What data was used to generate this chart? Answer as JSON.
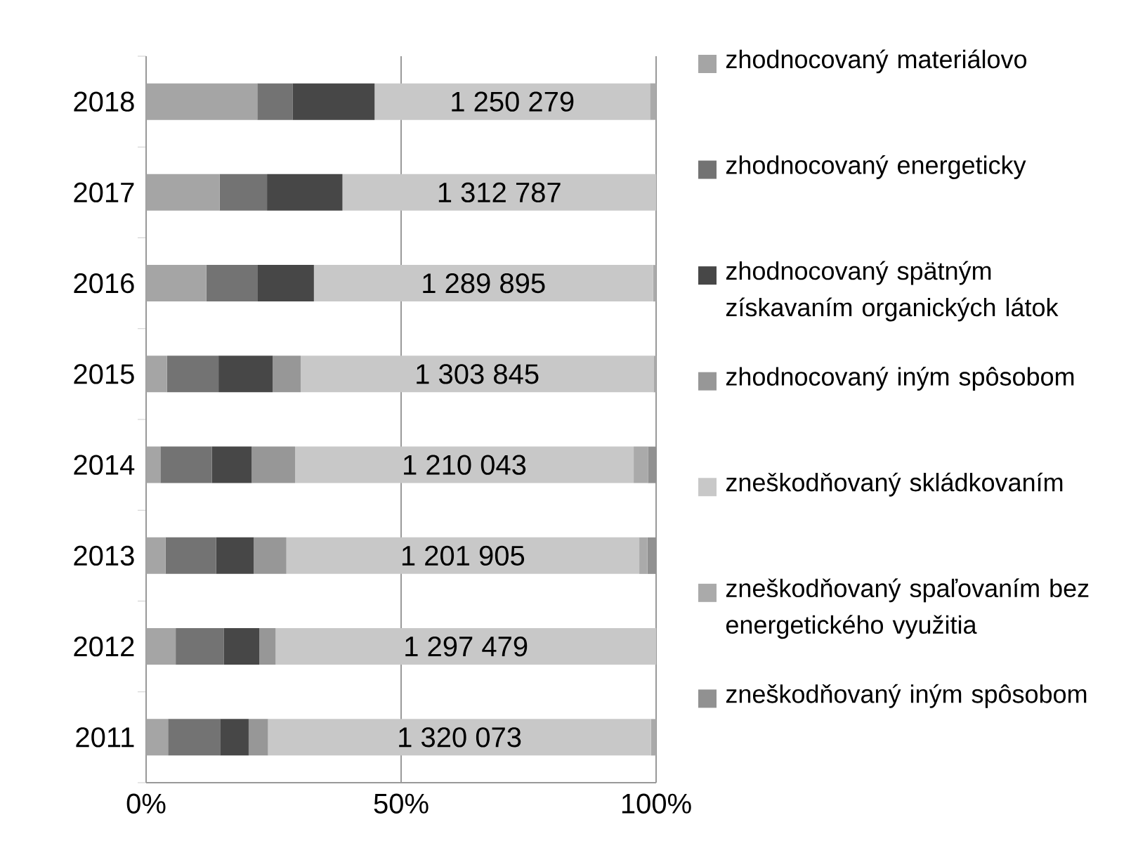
{
  "chart_data": {
    "type": "bar",
    "orientation": "horizontal",
    "stacked": true,
    "categories": [
      "2018",
      "2017",
      "2016",
      "2015",
      "2014",
      "2013",
      "2012",
      "2011"
    ],
    "series": [
      {
        "name": "zhodnocovaný materiálovo",
        "color": "#a5a5a5",
        "values": [
          21.8,
          14.4,
          11.8,
          4.1,
          2.8,
          3.8,
          5.8,
          4.3
        ]
      },
      {
        "name": "zhodnocovaný energeticky",
        "color": "#737373",
        "values": [
          6.9,
          9.3,
          10.1,
          10.1,
          10.1,
          9.9,
          9.4,
          10.2
        ]
      },
      {
        "name": "zhodnocovaný spätným získavaním organických látok",
        "color": "#474747",
        "values": [
          16.1,
          14.8,
          11.0,
          10.6,
          7.8,
          7.4,
          7.0,
          5.6
        ]
      },
      {
        "name": "zhodnocovaný iným spôsobom",
        "color": "#979797",
        "values": [
          0,
          0,
          0,
          5.5,
          8.5,
          6.4,
          3.2,
          3.8
        ]
      },
      {
        "name": "zneškodňovaný skládkovaním",
        "color": "#c8c8c8",
        "values": [
          54.0,
          61.5,
          66.5,
          69.2,
          66.4,
          69.2,
          74.6,
          75.1
        ]
      },
      {
        "name": "zneškodňovaný spaľovaním bez energetického využitia",
        "color": "#aaaaaa",
        "values": [
          1.2,
          0,
          0.6,
          0.5,
          2.8,
          1.6,
          0,
          1.0
        ]
      },
      {
        "name": "zneškodňovaný iným spôsobom",
        "color": "#919191",
        "values": [
          0,
          0,
          0,
          0,
          1.7,
          1.7,
          0,
          0
        ]
      }
    ],
    "xlim": [
      0,
      100
    ],
    "xticks": [
      {
        "value": 0,
        "label": "0%"
      },
      {
        "value": 50,
        "label": "50%"
      },
      {
        "value": 100,
        "label": "100%"
      }
    ],
    "annotations": [
      "1 250 279",
      "1 312 787",
      "1 289 895",
      "1 303 845",
      "1 210 043",
      "1 201 905",
      "1 297 479",
      "1 320 073"
    ],
    "grid": "x",
    "legend": "right"
  }
}
